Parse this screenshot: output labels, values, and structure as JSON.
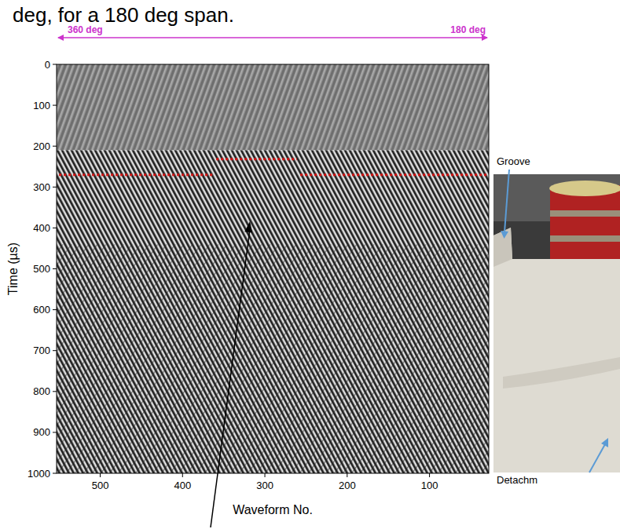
{
  "chart_data": {
    "type": "line",
    "title": "deg, for a 180 deg span.",
    "x_label": "Waveform No.",
    "y_label": "Time (µs)",
    "xlim": [
      553,
      28
    ],
    "ylim": [
      1000,
      0
    ],
    "xticks": [
      500,
      400,
      300,
      200,
      100
    ],
    "yticks": [
      0,
      100,
      200,
      300,
      400,
      500,
      600,
      700,
      800,
      900,
      1000
    ],
    "span_labels": [
      "360 deg",
      "180 deg"
    ],
    "photo_labels": [
      "Groove",
      "Detachm"
    ],
    "series": [
      {
        "color": "#d01010",
        "line_style": "dotted",
        "x": [
          550,
          362
        ],
        "values": [
          270,
          270
        ]
      },
      {
        "color": "#d01010",
        "line_style": "dotted",
        "x": [
          359,
          261
        ],
        "values": [
          232,
          232
        ]
      },
      {
        "color": "#d01010",
        "line_style": "dotted",
        "x": [
          257,
          30
        ],
        "values": [
          270,
          270
        ]
      }
    ]
  }
}
